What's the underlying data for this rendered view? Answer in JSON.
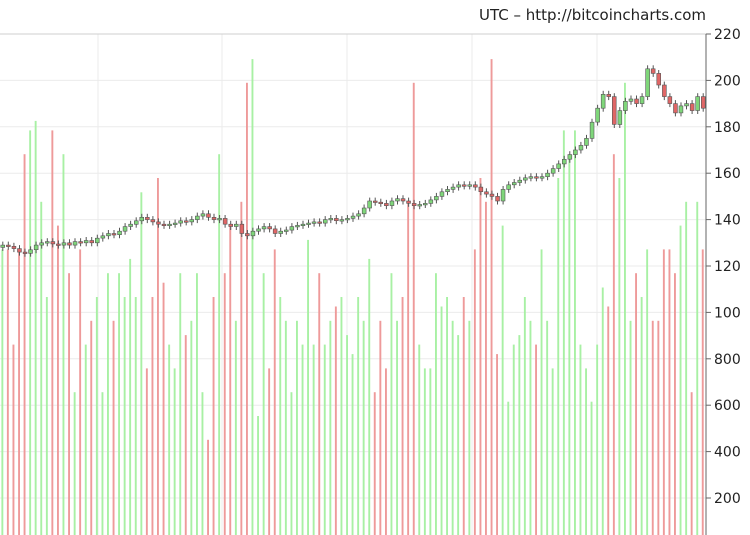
{
  "source_label": "UTC – http://bitcoincharts.com",
  "chart_data": {
    "type": "candlestick-with-volume",
    "price_axis": {
      "ticks": [
        140,
        160,
        180,
        200,
        220
      ],
      "range": [
        120,
        220
      ]
    },
    "volume_axis": {
      "ticks": [
        200,
        400,
        600,
        800,
        100,
        120
      ],
      "range": [
        0,
        1000
      ]
    },
    "candles": [
      {
        "open": 128,
        "close": 129
      },
      {
        "open": 129,
        "close": 128.5
      },
      {
        "open": 128.5,
        "close": 127.5
      },
      {
        "open": 127.5,
        "close": 126
      },
      {
        "open": 126,
        "close": 125.5
      },
      {
        "open": 125.5,
        "close": 127
      },
      {
        "open": 127,
        "close": 129
      },
      {
        "open": 129,
        "close": 130
      },
      {
        "open": 130,
        "close": 130.5
      },
      {
        "open": 130.5,
        "close": 129.5
      },
      {
        "open": 129.5,
        "close": 129
      },
      {
        "open": 129,
        "close": 130
      },
      {
        "open": 130,
        "close": 129
      },
      {
        "open": 129,
        "close": 130.5
      },
      {
        "open": 130.5,
        "close": 130
      },
      {
        "open": 130,
        "close": 131
      },
      {
        "open": 131,
        "close": 130
      },
      {
        "open": 130,
        "close": 132
      },
      {
        "open": 132,
        "close": 133
      },
      {
        "open": 133,
        "close": 134
      },
      {
        "open": 134,
        "close": 133.5
      },
      {
        "open": 133.5,
        "close": 135
      },
      {
        "open": 135,
        "close": 137
      },
      {
        "open": 137,
        "close": 138
      },
      {
        "open": 138,
        "close": 139.5
      },
      {
        "open": 139.5,
        "close": 141
      },
      {
        "open": 141,
        "close": 140
      },
      {
        "open": 140,
        "close": 139
      },
      {
        "open": 139,
        "close": 138
      },
      {
        "open": 138,
        "close": 137.5
      },
      {
        "open": 137.5,
        "close": 138
      },
      {
        "open": 138,
        "close": 138.5
      },
      {
        "open": 138.5,
        "close": 139.5
      },
      {
        "open": 139.5,
        "close": 139
      },
      {
        "open": 139,
        "close": 140
      },
      {
        "open": 140,
        "close": 141.5
      },
      {
        "open": 141.5,
        "close": 142.5
      },
      {
        "open": 142.5,
        "close": 141
      },
      {
        "open": 141,
        "close": 140
      },
      {
        "open": 140,
        "close": 140.5
      },
      {
        "open": 140.5,
        "close": 138
      },
      {
        "open": 138,
        "close": 137
      },
      {
        "open": 137,
        "close": 138
      },
      {
        "open": 138,
        "close": 134
      },
      {
        "open": 134,
        "close": 133
      },
      {
        "open": 133,
        "close": 135
      },
      {
        "open": 135,
        "close": 136
      },
      {
        "open": 136,
        "close": 137
      },
      {
        "open": 137,
        "close": 136
      },
      {
        "open": 136,
        "close": 134
      },
      {
        "open": 134,
        "close": 135
      },
      {
        "open": 135,
        "close": 135.5
      },
      {
        "open": 135.5,
        "close": 137
      },
      {
        "open": 137,
        "close": 137.5
      },
      {
        "open": 137.5,
        "close": 138
      },
      {
        "open": 138,
        "close": 138.5
      },
      {
        "open": 138.5,
        "close": 139
      },
      {
        "open": 139,
        "close": 138.5
      },
      {
        "open": 138.5,
        "close": 140
      },
      {
        "open": 140,
        "close": 140.5
      },
      {
        "open": 140.5,
        "close": 139.5
      },
      {
        "open": 139.5,
        "close": 140
      },
      {
        "open": 140,
        "close": 140.5
      },
      {
        "open": 140.5,
        "close": 141.5
      },
      {
        "open": 141.5,
        "close": 142.5
      },
      {
        "open": 142.5,
        "close": 145
      },
      {
        "open": 145,
        "close": 148
      },
      {
        "open": 148,
        "close": 147.5
      },
      {
        "open": 147.5,
        "close": 147
      },
      {
        "open": 147,
        "close": 146
      },
      {
        "open": 146,
        "close": 148
      },
      {
        "open": 148,
        "close": 149
      },
      {
        "open": 149,
        "close": 148
      },
      {
        "open": 148,
        "close": 147
      },
      {
        "open": 147,
        "close": 146
      },
      {
        "open": 146,
        "close": 146.5
      },
      {
        "open": 146.5,
        "close": 147
      },
      {
        "open": 147,
        "close": 148.5
      },
      {
        "open": 148.5,
        "close": 150
      },
      {
        "open": 150,
        "close": 152
      },
      {
        "open": 152,
        "close": 153
      },
      {
        "open": 153,
        "close": 154
      },
      {
        "open": 154,
        "close": 155
      },
      {
        "open": 155,
        "close": 154.5
      },
      {
        "open": 154.5,
        "close": 155
      },
      {
        "open": 155,
        "close": 154
      },
      {
        "open": 154,
        "close": 152
      },
      {
        "open": 152,
        "close": 151
      },
      {
        "open": 151,
        "close": 150
      },
      {
        "open": 150,
        "close": 148
      },
      {
        "open": 148,
        "close": 153
      },
      {
        "open": 153,
        "close": 155
      },
      {
        "open": 155,
        "close": 156
      },
      {
        "open": 156,
        "close": 157
      },
      {
        "open": 157,
        "close": 158
      },
      {
        "open": 158,
        "close": 158.5
      },
      {
        "open": 158.5,
        "close": 158
      },
      {
        "open": 158,
        "close": 158.5
      },
      {
        "open": 158.5,
        "close": 160
      },
      {
        "open": 160,
        "close": 162
      },
      {
        "open": 162,
        "close": 164
      },
      {
        "open": 164,
        "close": 166
      },
      {
        "open": 166,
        "close": 168
      },
      {
        "open": 168,
        "close": 170
      },
      {
        "open": 170,
        "close": 172
      },
      {
        "open": 172,
        "close": 175
      },
      {
        "open": 175,
        "close": 182
      },
      {
        "open": 182,
        "close": 188
      },
      {
        "open": 188,
        "close": 194
      },
      {
        "open": 194,
        "close": 193
      },
      {
        "open": 193,
        "close": 181
      },
      {
        "open": 181,
        "close": 187
      },
      {
        "open": 187,
        "close": 191
      },
      {
        "open": 191,
        "close": 192
      },
      {
        "open": 192,
        "close": 190
      },
      {
        "open": 190,
        "close": 193
      },
      {
        "open": 193,
        "close": 205
      },
      {
        "open": 205,
        "close": 203
      },
      {
        "open": 203,
        "close": 198
      },
      {
        "open": 198,
        "close": 193
      },
      {
        "open": 193,
        "close": 190
      },
      {
        "open": 190,
        "close": 186
      },
      {
        "open": 186,
        "close": 189
      },
      {
        "open": 189,
        "close": 190
      },
      {
        "open": 190,
        "close": 187
      },
      {
        "open": 187,
        "close": 193
      },
      {
        "open": 193,
        "close": 188
      }
    ],
    "volumes": [
      60,
      60,
      40,
      60,
      80,
      85,
      87,
      70,
      50,
      85,
      65,
      80,
      55,
      30,
      60,
      40,
      45,
      50,
      30,
      55,
      45,
      55,
      50,
      58,
      50,
      72,
      35,
      50,
      75,
      53,
      40,
      35,
      55,
      42,
      45,
      55,
      30,
      20,
      50,
      80,
      55,
      65,
      45,
      70,
      95,
      100,
      25,
      55,
      35,
      60,
      50,
      45,
      30,
      45,
      40,
      62,
      40,
      55,
      40,
      45,
      48,
      50,
      42,
      38,
      50,
      45,
      58,
      30,
      45,
      35,
      55,
      45,
      50,
      70,
      95,
      40,
      35,
      35,
      55,
      48,
      50,
      45,
      42,
      50,
      45,
      60,
      75,
      70,
      100,
      38,
      65,
      28,
      40,
      42,
      50,
      45,
      40,
      60,
      45,
      35,
      75,
      85,
      80,
      85,
      40,
      35,
      28,
      40,
      52,
      48,
      80,
      75,
      95,
      45,
      55,
      50,
      60,
      45,
      45,
      60,
      60,
      55,
      65,
      70,
      30,
      70,
      60
    ]
  }
}
